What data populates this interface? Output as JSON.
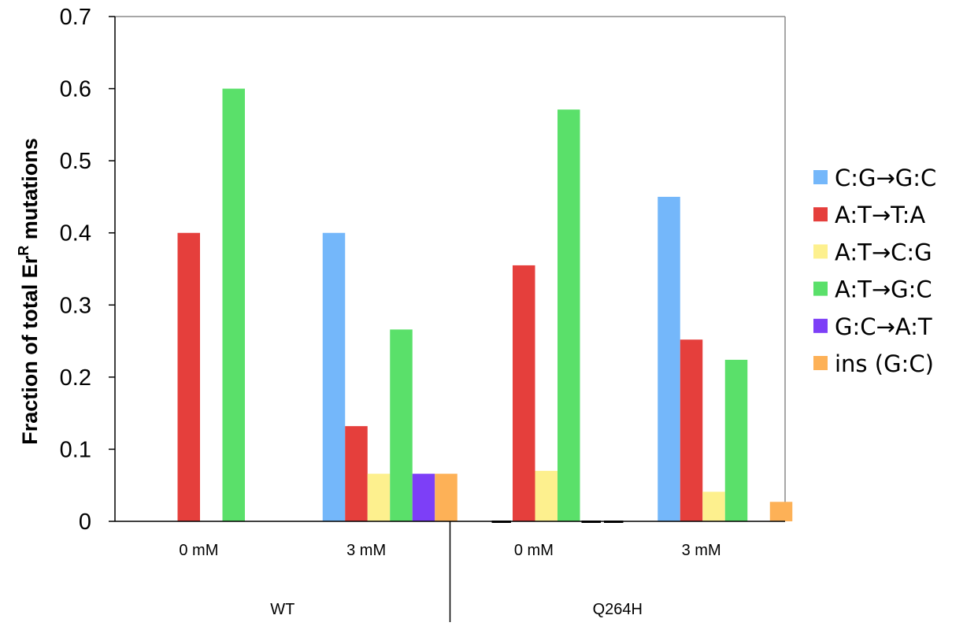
{
  "chart_data": {
    "type": "bar",
    "ylabel": {
      "main": "Fraction of total Er",
      "sup": "R",
      "tail": " mutations"
    },
    "ylim": [
      0,
      0.7
    ],
    "yticks": [
      "0",
      "0.1",
      "0.2",
      "0.3",
      "0.4",
      "0.5",
      "0.6",
      "0.7"
    ],
    "ytick_values": [
      0,
      0.1,
      0.2,
      0.3,
      0.4,
      0.5,
      0.6,
      0.7
    ],
    "categories": [
      "0 mM",
      "3 mM",
      "0 mM",
      "3 mM"
    ],
    "groups": [
      {
        "label": "WT",
        "span": [
          0,
          1
        ]
      },
      {
        "label": "Q264H",
        "span": [
          2,
          3
        ]
      }
    ],
    "legend_position": "right",
    "series": [
      {
        "name": "C:G→G:C",
        "color": "#74b7fa",
        "values": [
          0,
          0.4,
          0,
          0.45
        ]
      },
      {
        "name": "A:T→T:A",
        "color": "#e53f3c",
        "values": [
          0.4,
          0.132,
          0.355,
          0.252
        ]
      },
      {
        "name": "A:T→C:G",
        "color": "#fdf08e",
        "values": [
          0,
          0.066,
          0.07,
          0.041
        ]
      },
      {
        "name": "A:T→G:C",
        "color": "#5ae06a",
        "values": [
          0.6,
          0.266,
          0.571,
          0.224
        ]
      },
      {
        "name": "G:C→A:T",
        "color": "#7d3ff7",
        "values": [
          0,
          0.066,
          0,
          0
        ]
      },
      {
        "name": "ins (G:C)",
        "color": "#fdb157",
        "values": [
          0,
          0.066,
          0,
          0.027
        ]
      }
    ]
  }
}
